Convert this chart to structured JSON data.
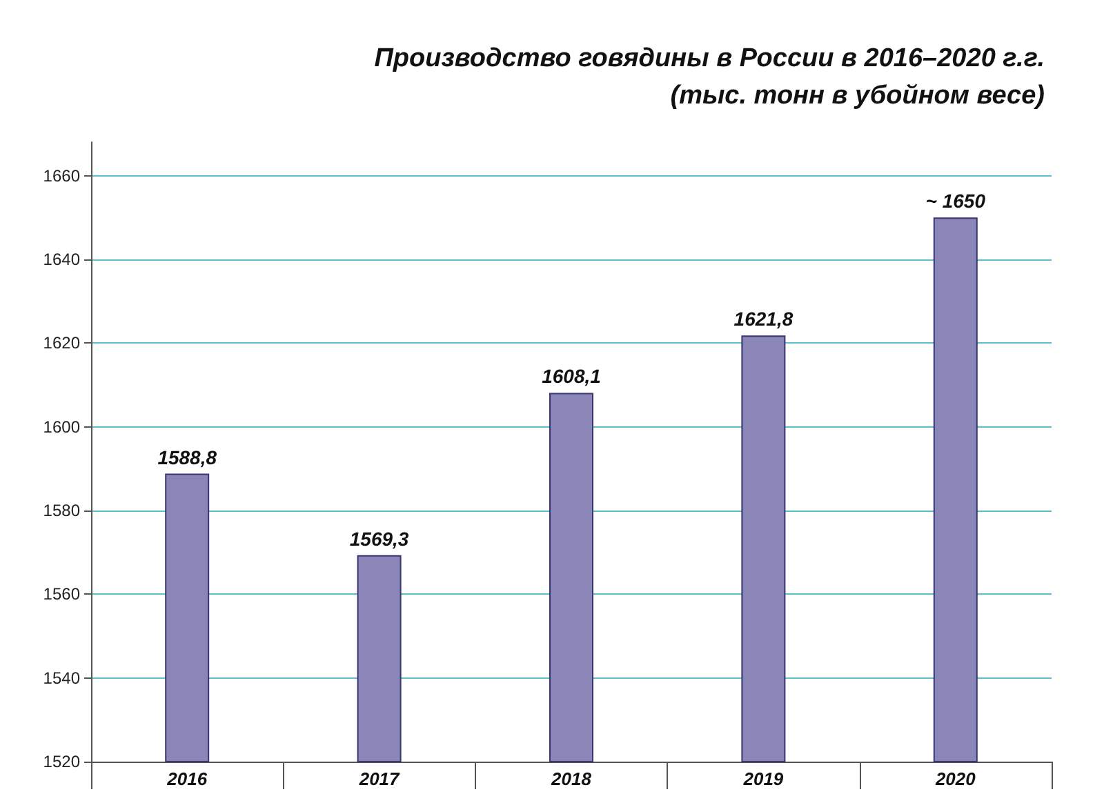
{
  "chart_data": {
    "type": "bar",
    "title": "Производство говядины в России в 2016–2020 г.г.",
    "subtitle": "(тыс. тонн в убойном весе)",
    "categories": [
      "2016",
      "2017",
      "2018",
      "2019",
      "2020"
    ],
    "values": [
      1588.8,
      1569.3,
      1608.1,
      1621.8,
      1650
    ],
    "value_labels": [
      "1588,8",
      "1569,3",
      "1608,1",
      "1621,8",
      "~ 1650"
    ],
    "color": "#8a86b8",
    "ylim": [
      1520,
      1668
    ],
    "yticks": [
      1520,
      1540,
      1560,
      1580,
      1600,
      1620,
      1640,
      1660
    ],
    "grid": "y"
  }
}
